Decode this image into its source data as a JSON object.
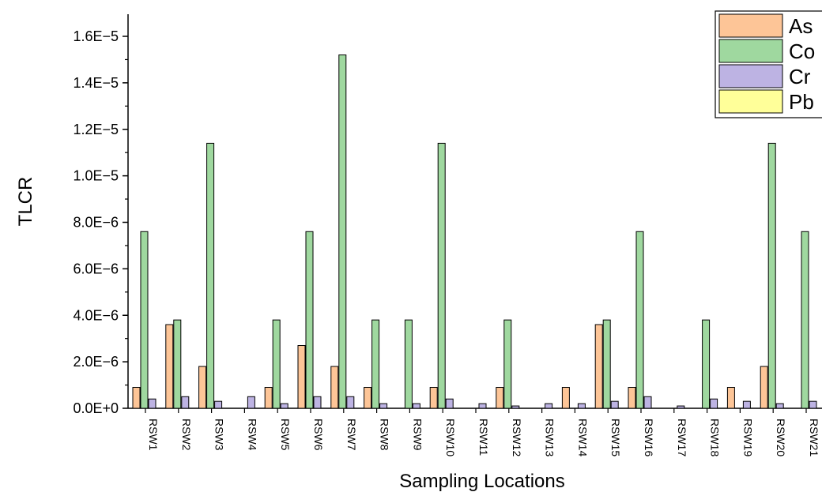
{
  "chart_data": {
    "type": "bar",
    "title": "",
    "xlabel": "Sampling Locations",
    "ylabel": "TLCR",
    "ylim": [
      0,
      1.6e-05
    ],
    "yticks": [
      "0.0E+0",
      "2.0E−6",
      "4.0E−6",
      "6.0E−6",
      "8.0E−6",
      "1.0E−5",
      "1.2E−5",
      "1.4E−5",
      "1.6E−5"
    ],
    "ytick_values": [
      0,
      2e-06,
      4e-06,
      6e-06,
      8e-06,
      1e-05,
      1.2e-05,
      1.4e-05,
      1.6e-05
    ],
    "grid": false,
    "legend_position": "top-right",
    "categories": [
      "RSW1",
      "RSW2",
      "RSW3",
      "RSW4",
      "RSW5",
      "RSW6",
      "RSW7",
      "RSW8",
      "RSW9",
      "RSW10",
      "RSW11",
      "RSW12",
      "RSW13",
      "RSW14",
      "RSW15",
      "RSW16",
      "RSW17",
      "RSW18",
      "RSW19",
      "RSW20",
      "RSW21"
    ],
    "series": [
      {
        "name": "As",
        "color": "#fdc597",
        "values": [
          9e-07,
          3.6e-06,
          1.8e-06,
          0,
          9e-07,
          2.7e-06,
          1.8e-06,
          9e-07,
          0,
          9e-07,
          0,
          9e-07,
          0,
          9e-07,
          3.6e-06,
          9e-07,
          0,
          0,
          9e-07,
          1.8e-06,
          0
        ]
      },
      {
        "name": "Co",
        "color": "#9fd89f",
        "values": [
          7.6e-06,
          3.8e-06,
          1.14e-05,
          0,
          3.8e-06,
          7.6e-06,
          1.52e-05,
          3.8e-06,
          3.8e-06,
          1.14e-05,
          0,
          3.8e-06,
          0,
          0,
          3.8e-06,
          7.6e-06,
          0,
          3.8e-06,
          0,
          1.14e-05,
          7.6e-06
        ]
      },
      {
        "name": "Cr",
        "color": "#bdb3e3",
        "values": [
          4e-07,
          5e-07,
          3e-07,
          5e-07,
          2e-07,
          5e-07,
          5e-07,
          2e-07,
          2e-07,
          4e-07,
          2e-07,
          1e-07,
          2e-07,
          2e-07,
          3e-07,
          5e-07,
          1e-07,
          4e-07,
          3e-07,
          2e-07,
          3e-07
        ]
      },
      {
        "name": "Pb",
        "color": "#ffff99",
        "values": [
          0,
          0,
          0,
          0,
          0,
          0,
          0,
          0,
          0,
          0,
          0,
          0,
          0,
          0,
          0,
          0,
          0,
          0,
          0,
          0,
          0
        ]
      }
    ]
  }
}
